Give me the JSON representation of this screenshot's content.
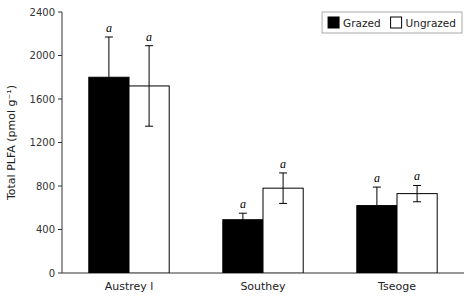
{
  "chart_data": {
    "type": "bar",
    "categories": [
      "Austrey l",
      "Southey",
      "Tseoge"
    ],
    "series": [
      {
        "name": "Grazed",
        "color": "#000000",
        "values": [
          1800,
          490,
          620
        ],
        "errors": [
          370,
          60,
          170
        ],
        "letters": [
          "a",
          "a",
          "a"
        ]
      },
      {
        "name": "Ungrazed",
        "color": "#ffffff",
        "values": [
          1720,
          780,
          730
        ],
        "errors": [
          370,
          140,
          75
        ],
        "letters": [
          "a",
          "a",
          "a"
        ]
      }
    ],
    "ylabel": "Total PLFA (pmol g⁻¹)",
    "ylim": [
      0,
      2400
    ],
    "yticks": [
      0,
      400,
      800,
      1200,
      1600,
      2000,
      2400
    ],
    "legend": "upper right",
    "grid": false
  }
}
